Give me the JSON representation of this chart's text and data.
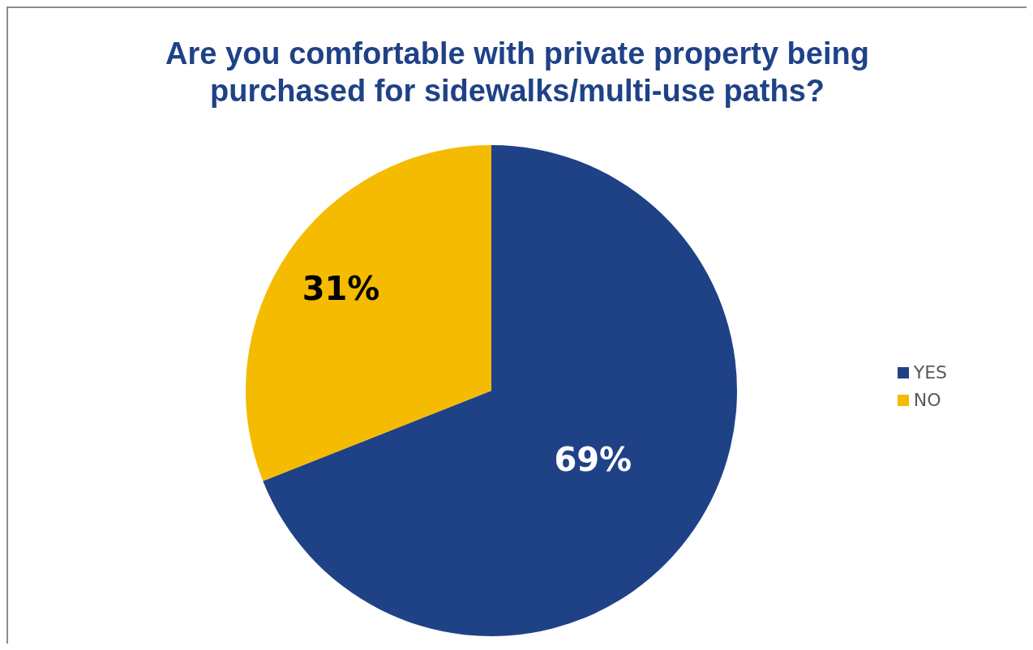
{
  "chart_data": {
    "type": "pie",
    "title": "Are you comfortable with private property being purchased for sidewalks/multi-use paths?",
    "categories": [
      "YES",
      "NO"
    ],
    "values": [
      69,
      31
    ],
    "colors": [
      "#1f4287",
      "#f5bb00"
    ],
    "value_labels": [
      "69%",
      "31%"
    ],
    "legend": "right"
  }
}
